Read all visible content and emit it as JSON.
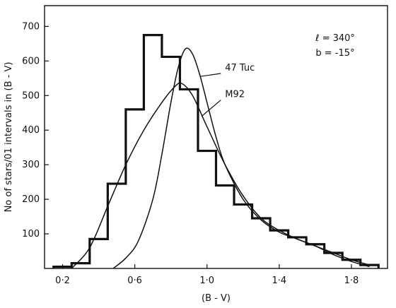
{
  "chart_data": {
    "type": "line",
    "xlabel": "(B - V)",
    "ylabel": "No of stars/01 intervals in (B - V)",
    "xlim": [
      0.1,
      2.0
    ],
    "ylim": [
      0,
      760
    ],
    "x_ticks": [
      {
        "value": 0.2,
        "label": "0·2"
      },
      {
        "value": 0.6,
        "label": "0·6"
      },
      {
        "value": 1.0,
        "label": "1·0"
      },
      {
        "value": 1.4,
        "label": "1·4"
      },
      {
        "value": 1.8,
        "label": "1·8"
      }
    ],
    "y_ticks": [
      {
        "value": 100,
        "label": "100"
      },
      {
        "value": 200,
        "label": "200"
      },
      {
        "value": 300,
        "label": "300"
      },
      {
        "value": 400,
        "label": "400"
      },
      {
        "value": 500,
        "label": "500"
      },
      {
        "value": 600,
        "label": "600"
      },
      {
        "value": 700,
        "label": "700"
      }
    ],
    "annotations": [
      {
        "text": "ℓ = 340°"
      },
      {
        "text": "b = -15°"
      }
    ],
    "histogram": {
      "bin_edges": [
        0.15,
        0.25,
        0.35,
        0.45,
        0.55,
        0.65,
        0.75,
        0.85,
        0.95,
        1.05,
        1.15,
        1.25,
        1.35,
        1.45,
        1.55,
        1.65,
        1.75,
        1.85,
        1.95
      ],
      "values": [
        5,
        15,
        85,
        245,
        460,
        675,
        612,
        518,
        340,
        240,
        185,
        145,
        110,
        90,
        70,
        45,
        25,
        10
      ]
    },
    "series": [
      {
        "name": "47 Tuc",
        "x": [
          0.48,
          0.55,
          0.62,
          0.7,
          0.75,
          0.8,
          0.84,
          0.88,
          0.92,
          0.96,
          1.0,
          1.05,
          1.1,
          1.2,
          1.3,
          1.4,
          1.5,
          1.6,
          1.7,
          1.8,
          1.9
        ],
        "y": [
          0,
          30,
          80,
          200,
          330,
          480,
          580,
          635,
          620,
          560,
          480,
          380,
          300,
          200,
          140,
          105,
          85,
          65,
          45,
          25,
          10
        ]
      },
      {
        "name": "M92",
        "x": [
          0.25,
          0.35,
          0.45,
          0.55,
          0.65,
          0.75,
          0.82,
          0.86,
          0.92,
          1.0,
          1.1,
          1.2,
          1.3,
          1.4,
          1.5,
          1.6,
          1.7,
          1.8,
          1.9
        ],
        "y": [
          0,
          60,
          180,
          300,
          400,
          480,
          525,
          535,
          500,
          410,
          300,
          210,
          145,
          110,
          85,
          65,
          40,
          20,
          5
        ]
      }
    ]
  }
}
